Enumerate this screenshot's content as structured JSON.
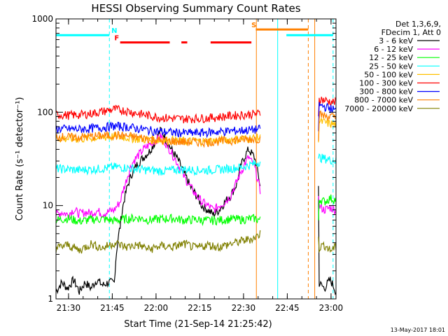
{
  "chart_data": {
    "type": "line",
    "title": "HESSI Observing Summary Count Rates",
    "xlabel": "Start Time (21-Sep-14 21:25:42)",
    "ylabel": "Count Rate (s⁻¹ detector⁻¹)",
    "x_unit": "minutes after 21:25:42",
    "xlim": [
      0,
      96
    ],
    "ylim": [
      1,
      1000
    ],
    "yscale": "log",
    "xticks": [
      {
        "x": 4.3,
        "label": "21:30"
      },
      {
        "x": 19.3,
        "label": "21:45"
      },
      {
        "x": 34.3,
        "label": "22:00"
      },
      {
        "x": 49.3,
        "label": "22:15"
      },
      {
        "x": 64.3,
        "label": "22:30"
      },
      {
        "x": 79.3,
        "label": "22:45"
      },
      {
        "x": 94.3,
        "label": "23:00"
      }
    ],
    "yticks": [
      {
        "y": 1,
        "label": "1"
      },
      {
        "y": 10,
        "label": "10"
      },
      {
        "y": 100,
        "label": "100"
      },
      {
        "y": 1000,
        "label": "1000"
      }
    ],
    "legend_header": [
      "Det 1,3,6,9,",
      "FDecim 1, Att 0"
    ],
    "legend_position": "right",
    "footer": "13-May-2017 18:01",
    "gap": [
      70,
      90
    ],
    "series": [
      {
        "name": "3 - 6 keV",
        "color": "#000000",
        "x": [
          0,
          2,
          4,
          6,
          8,
          10,
          12,
          14,
          16,
          18,
          20,
          22,
          24,
          26,
          28,
          30,
          32,
          34,
          36,
          38,
          40,
          42,
          44,
          46,
          48,
          50,
          52,
          54,
          56,
          58,
          60,
          62,
          64,
          66,
          68,
          70,
          90,
          92,
          94,
          96
        ],
        "y": [
          1.2,
          1.5,
          1.3,
          1.6,
          1.2,
          1.5,
          1.3,
          1.6,
          1.4,
          1.5,
          1.5,
          6,
          14,
          22,
          28,
          33,
          38,
          48,
          65,
          48,
          38,
          30,
          22,
          16,
          13,
          10,
          9,
          8,
          9,
          11,
          13,
          17,
          30,
          40,
          33,
          16,
          1.5,
          1.3,
          1.6,
          1.2
        ]
      },
      {
        "name": "6 - 12 keV",
        "color": "#ff00ff",
        "x": [
          0,
          2,
          4,
          6,
          8,
          10,
          12,
          14,
          16,
          18,
          20,
          22,
          24,
          26,
          28,
          30,
          32,
          34,
          36,
          38,
          40,
          42,
          44,
          46,
          48,
          50,
          52,
          54,
          56,
          58,
          60,
          62,
          64,
          66,
          68,
          70,
          90,
          92,
          94,
          96
        ],
        "y": [
          8,
          8.5,
          8,
          9,
          8.2,
          8.5,
          8.3,
          8.8,
          8.2,
          8.6,
          9,
          11,
          18,
          28,
          34,
          40,
          45,
          50,
          55,
          45,
          35,
          27,
          20,
          16,
          13,
          11,
          10,
          9,
          10,
          11,
          13,
          18,
          25,
          33,
          26,
          14,
          10,
          9,
          9.5,
          9
        ]
      },
      {
        "name": "12 - 25 keV",
        "color": "#00ff00",
        "x": [
          0,
          4,
          8,
          12,
          16,
          20,
          24,
          28,
          32,
          36,
          40,
          44,
          48,
          52,
          56,
          60,
          64,
          68,
          70,
          90,
          92,
          94,
          96
        ],
        "y": [
          7,
          7.3,
          6.8,
          7.1,
          7.2,
          6.9,
          7.2,
          7.4,
          7.0,
          7.2,
          7.3,
          7.0,
          7.1,
          6.9,
          7.0,
          7.2,
          7.1,
          7.3,
          7.0,
          12,
          11,
          12,
          11.5
        ]
      },
      {
        "name": "25 - 50 keV",
        "color": "#00ffff",
        "x": [
          0,
          4,
          8,
          12,
          16,
          20,
          24,
          28,
          32,
          36,
          40,
          44,
          48,
          52,
          56,
          60,
          64,
          68,
          70,
          90,
          92,
          94,
          96
        ],
        "y": [
          25,
          24.5,
          24,
          24.5,
          25,
          26,
          25.5,
          24.5,
          24,
          23.5,
          24,
          24.5,
          24,
          24,
          24.5,
          25,
          26,
          28,
          30,
          33,
          32,
          31,
          30
        ]
      },
      {
        "name": "50 - 100 keV",
        "color": "#ffc000",
        "x": [
          0,
          4,
          8,
          12,
          16,
          20,
          24,
          28,
          32,
          36,
          40,
          44,
          48,
          52,
          56,
          60,
          64,
          68,
          70,
          90,
          92,
          94,
          96
        ],
        "y": [
          53,
          52,
          52,
          53,
          54,
          55,
          54,
          52,
          51,
          50,
          50,
          49,
          49,
          49,
          50,
          51,
          52,
          53,
          53,
          80,
          78,
          75,
          74
        ]
      },
      {
        "name": "100 - 300 keV",
        "color": "#ff0000",
        "x": [
          0,
          4,
          8,
          12,
          16,
          20,
          24,
          28,
          32,
          36,
          40,
          44,
          48,
          52,
          56,
          60,
          64,
          68,
          70,
          90,
          92,
          94,
          96
        ],
        "y": [
          95,
          93,
          94,
          97,
          102,
          108,
          104,
          97,
          92,
          88,
          86,
          85,
          86,
          87,
          89,
          92,
          94,
          96,
          97,
          140,
          135,
          130,
          128
        ]
      },
      {
        "name": "300 - 800 keV",
        "color": "#0000ff",
        "x": [
          0,
          4,
          8,
          12,
          16,
          20,
          24,
          28,
          32,
          36,
          40,
          44,
          48,
          52,
          56,
          60,
          64,
          68,
          70,
          90,
          92,
          94,
          96
        ],
        "y": [
          67,
          66,
          66,
          67,
          69,
          71,
          70,
          67,
          64,
          62,
          61,
          60,
          60,
          61,
          62,
          63,
          64,
          65,
          66,
          120,
          115,
          110,
          105
        ]
      },
      {
        "name": "800 - 7000 keV",
        "color": "#ff8000",
        "x": [
          0,
          4,
          8,
          12,
          16,
          20,
          24,
          28,
          32,
          36,
          40,
          44,
          48,
          52,
          56,
          60,
          64,
          68,
          70,
          90,
          92,
          94,
          96
        ],
        "y": [
          55,
          54,
          54,
          55,
          56,
          57,
          56,
          54,
          52,
          50,
          49,
          48,
          48,
          48,
          49,
          50,
          51,
          52,
          52,
          95,
          92,
          90,
          88
        ]
      },
      {
        "name": "7000 - 20000 keV",
        "color": "#808000",
        "x": [
          0,
          4,
          8,
          12,
          16,
          20,
          24,
          28,
          32,
          36,
          40,
          44,
          48,
          52,
          56,
          60,
          64,
          68,
          70,
          90,
          92,
          94,
          96
        ],
        "y": [
          3.5,
          3.8,
          3.3,
          3.9,
          3.5,
          4.0,
          3.6,
          3.8,
          3.4,
          3.7,
          3.6,
          3.9,
          3.5,
          3.8,
          3.6,
          3.9,
          4.2,
          4.5,
          5.0,
          3.5,
          3.8,
          3.3,
          3.6
        ]
      }
    ],
    "flags": [
      {
        "label": "N",
        "color": "#00ffff",
        "y": 670,
        "segments": [
          [
            0,
            18.3
          ],
          [
            79,
            95
          ]
        ],
        "label_x": 19
      },
      {
        "label": "F",
        "color": "#ff0000",
        "y": 560,
        "segments": [
          [
            22,
            39
          ],
          [
            43,
            45
          ],
          [
            53,
            67
          ]
        ],
        "label_x": 20
      },
      {
        "label": "S",
        "color": "#ff8000",
        "y": 770,
        "segments": [
          [
            68.5,
            86.5
          ]
        ],
        "label_x": 67
      }
    ],
    "vlines": [
      {
        "x": 0,
        "color": "#00ffff",
        "style": "solid"
      },
      {
        "x": 18.3,
        "color": "#00ffff",
        "style": "dashed"
      },
      {
        "x": 68.7,
        "color": "#ff8000",
        "style": "solid"
      },
      {
        "x": 76,
        "color": "#00ffff",
        "style": "solid"
      },
      {
        "x": 86.5,
        "color": "#ff8000",
        "style": "dashed"
      },
      {
        "x": 88.7,
        "color": "#ff8000",
        "style": "solid"
      },
      {
        "x": 95,
        "color": "#00ffff",
        "style": "dashed"
      }
    ]
  }
}
